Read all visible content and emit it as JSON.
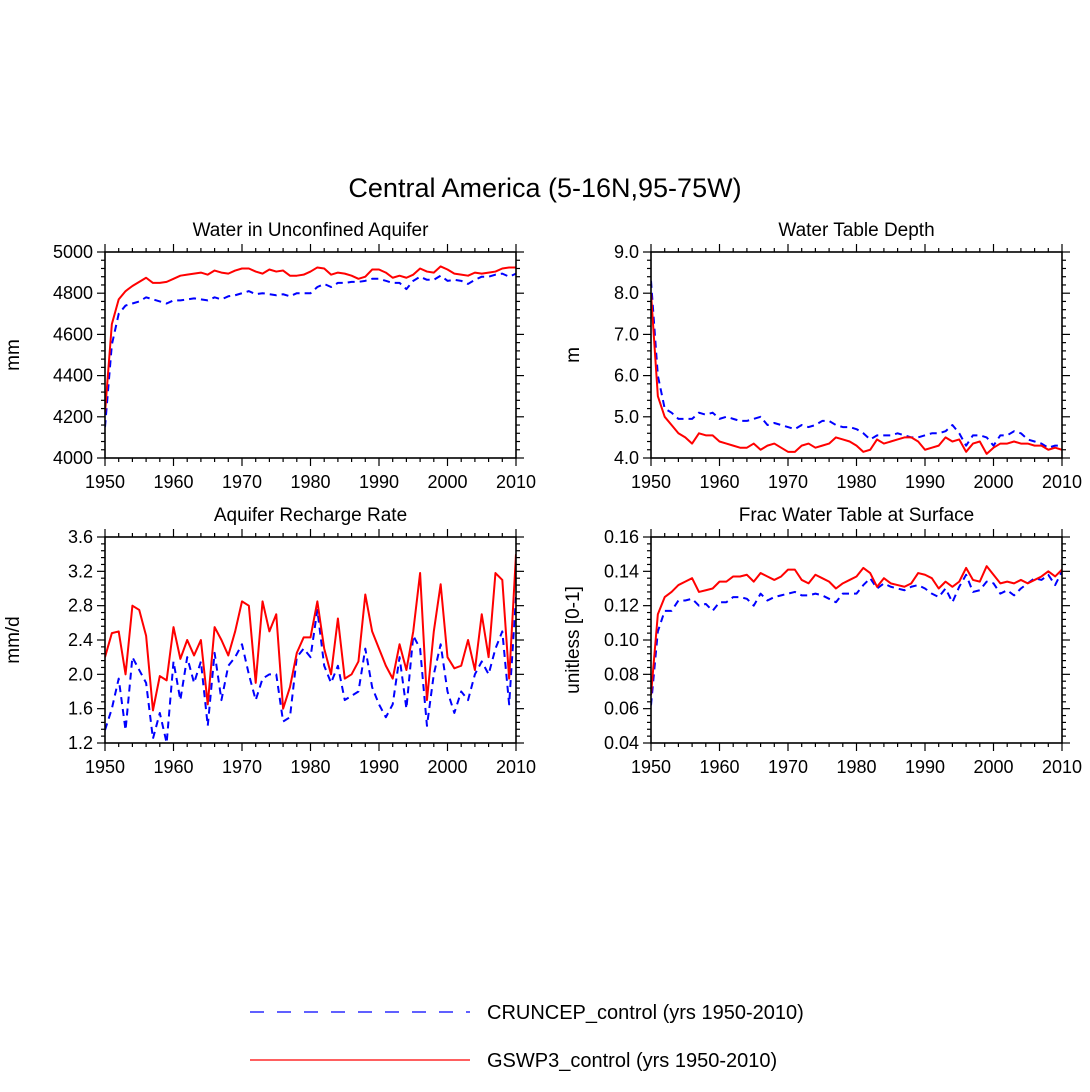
{
  "title": "Central America (5-16N,95-75W)",
  "legend": {
    "entries": [
      {
        "label": "CRUNCEP_control (yrs 1950-2010)",
        "color": "#0000ff",
        "style": "dashed"
      },
      {
        "label": "GSWP3_control (yrs 1950-2010)",
        "color": "#ff0000",
        "style": "solid"
      }
    ]
  },
  "chart_data": [
    {
      "type": "line",
      "title": "Water in Unconfined Aquifer",
      "xlabel": "",
      "ylabel": "mm",
      "xlim": [
        1950,
        2010
      ],
      "ylim": [
        4000,
        5000
      ],
      "xticks": [
        1950,
        1960,
        1970,
        1980,
        1990,
        2000,
        2010
      ],
      "yticks": [
        4000,
        4200,
        4400,
        4600,
        4800,
        5000
      ],
      "ytick_labels": [
        "4000",
        "4200",
        "4400",
        "4600",
        "4800",
        "5000"
      ],
      "x": [
        1950,
        1951,
        1952,
        1953,
        1954,
        1955,
        1956,
        1957,
        1958,
        1959,
        1960,
        1961,
        1962,
        1963,
        1964,
        1965,
        1966,
        1967,
        1968,
        1969,
        1970,
        1971,
        1972,
        1973,
        1974,
        1975,
        1976,
        1977,
        1978,
        1979,
        1980,
        1981,
        1982,
        1983,
        1984,
        1985,
        1986,
        1987,
        1988,
        1989,
        1990,
        1991,
        1992,
        1993,
        1994,
        1995,
        1996,
        1997,
        1998,
        1999,
        2000,
        2001,
        2002,
        2003,
        2004,
        2005,
        2006,
        2007,
        2008,
        2009,
        2010
      ],
      "series": [
        {
          "name": "CRUNCEP_control",
          "color": "#0000ff",
          "style": "dashed",
          "values": [
            4150,
            4550,
            4700,
            4740,
            4750,
            4760,
            4780,
            4770,
            4760,
            4750,
            4765,
            4765,
            4770,
            4775,
            4770,
            4765,
            4780,
            4770,
            4785,
            4790,
            4800,
            4810,
            4795,
            4800,
            4795,
            4790,
            4795,
            4785,
            4800,
            4800,
            4800,
            4830,
            4845,
            4830,
            4850,
            4850,
            4855,
            4855,
            4860,
            4870,
            4870,
            4860,
            4850,
            4850,
            4820,
            4860,
            4880,
            4865,
            4865,
            4885,
            4860,
            4865,
            4860,
            4845,
            4865,
            4880,
            4880,
            4890,
            4895,
            4880,
            4895
          ]
        },
        {
          "name": "GSWP3_control",
          "color": "#ff0000",
          "style": "solid",
          "values": [
            4220,
            4650,
            4770,
            4810,
            4835,
            4855,
            4875,
            4850,
            4850,
            4855,
            4870,
            4885,
            4890,
            4895,
            4900,
            4890,
            4910,
            4900,
            4895,
            4910,
            4920,
            4920,
            4905,
            4895,
            4915,
            4905,
            4910,
            4885,
            4885,
            4890,
            4905,
            4925,
            4920,
            4890,
            4900,
            4895,
            4885,
            4870,
            4880,
            4915,
            4915,
            4900,
            4875,
            4885,
            4875,
            4890,
            4920,
            4905,
            4900,
            4930,
            4915,
            4895,
            4890,
            4885,
            4900,
            4895,
            4900,
            4905,
            4920,
            4925,
            4925
          ]
        }
      ]
    },
    {
      "type": "line",
      "title": "Water Table Depth",
      "xlabel": "",
      "ylabel": "m",
      "xlim": [
        1950,
        2010
      ],
      "ylim": [
        4.0,
        9.0
      ],
      "xticks": [
        1950,
        1960,
        1970,
        1980,
        1990,
        2000,
        2010
      ],
      "yticks": [
        4.0,
        5.0,
        6.0,
        7.0,
        8.0,
        9.0
      ],
      "ytick_labels": [
        "4.0",
        "5.0",
        "6.0",
        "7.0",
        "8.0",
        "9.0"
      ],
      "x": [
        1950,
        1951,
        1952,
        1953,
        1954,
        1955,
        1956,
        1957,
        1958,
        1959,
        1960,
        1961,
        1962,
        1963,
        1964,
        1965,
        1966,
        1967,
        1968,
        1969,
        1970,
        1971,
        1972,
        1973,
        1974,
        1975,
        1976,
        1977,
        1978,
        1979,
        1980,
        1981,
        1982,
        1983,
        1984,
        1985,
        1986,
        1987,
        1988,
        1989,
        1990,
        1991,
        1992,
        1993,
        1994,
        1995,
        1996,
        1997,
        1998,
        1999,
        2000,
        2001,
        2002,
        2003,
        2004,
        2005,
        2006,
        2007,
        2008,
        2009,
        2010
      ],
      "series": [
        {
          "name": "CRUNCEP_control",
          "color": "#0000ff",
          "style": "dashed",
          "values": [
            8.3,
            6.0,
            5.2,
            5.1,
            4.95,
            4.95,
            4.95,
            5.1,
            5.05,
            5.1,
            4.95,
            5.0,
            4.95,
            4.9,
            4.9,
            4.95,
            5.0,
            4.8,
            4.85,
            4.8,
            4.75,
            4.7,
            4.8,
            4.75,
            4.8,
            4.9,
            4.9,
            4.8,
            4.75,
            4.75,
            4.7,
            4.6,
            4.45,
            4.55,
            4.55,
            4.55,
            4.6,
            4.55,
            4.5,
            4.5,
            4.55,
            4.6,
            4.6,
            4.65,
            4.8,
            4.6,
            4.3,
            4.55,
            4.55,
            4.5,
            4.3,
            4.55,
            4.55,
            4.65,
            4.6,
            4.45,
            4.4,
            4.35,
            4.25,
            4.3,
            4.3
          ]
        },
        {
          "name": "GSWP3_control",
          "color": "#ff0000",
          "style": "solid",
          "values": [
            8.0,
            5.5,
            5.0,
            4.8,
            4.6,
            4.5,
            4.35,
            4.6,
            4.55,
            4.55,
            4.4,
            4.35,
            4.3,
            4.25,
            4.25,
            4.35,
            4.2,
            4.3,
            4.35,
            4.25,
            4.15,
            4.15,
            4.3,
            4.35,
            4.25,
            4.3,
            4.35,
            4.5,
            4.45,
            4.4,
            4.3,
            4.15,
            4.2,
            4.45,
            4.35,
            4.4,
            4.45,
            4.5,
            4.5,
            4.4,
            4.2,
            4.25,
            4.3,
            4.5,
            4.4,
            4.45,
            4.15,
            4.35,
            4.4,
            4.1,
            4.25,
            4.35,
            4.35,
            4.4,
            4.35,
            4.35,
            4.3,
            4.3,
            4.2,
            4.25,
            4.2
          ]
        }
      ]
    },
    {
      "type": "line",
      "title": "Aquifer Recharge Rate",
      "xlabel": "",
      "ylabel": "mm/d",
      "xlim": [
        1950,
        2010
      ],
      "ylim": [
        1.2,
        3.6
      ],
      "xticks": [
        1950,
        1960,
        1970,
        1980,
        1990,
        2000,
        2010
      ],
      "yticks": [
        1.2,
        1.6,
        2.0,
        2.4,
        2.8,
        3.2,
        3.6
      ],
      "ytick_labels": [
        "1.2",
        "1.6",
        "2.0",
        "2.4",
        "2.8",
        "3.2",
        "3.6"
      ],
      "x": [
        1950,
        1951,
        1952,
        1953,
        1954,
        1955,
        1956,
        1957,
        1958,
        1959,
        1960,
        1961,
        1962,
        1963,
        1964,
        1965,
        1966,
        1967,
        1968,
        1969,
        1970,
        1971,
        1972,
        1973,
        1974,
        1975,
        1976,
        1977,
        1978,
        1979,
        1980,
        1981,
        1982,
        1983,
        1984,
        1985,
        1986,
        1987,
        1988,
        1989,
        1990,
        1991,
        1992,
        1993,
        1994,
        1995,
        1996,
        1997,
        1998,
        1999,
        2000,
        2001,
        2002,
        2003,
        2004,
        2005,
        2006,
        2007,
        2008,
        2009,
        2010
      ],
      "series": [
        {
          "name": "CRUNCEP_control",
          "color": "#0000ff",
          "style": "dashed",
          "values": [
            1.35,
            1.6,
            1.95,
            1.35,
            2.2,
            2.05,
            1.9,
            1.25,
            1.55,
            1.2,
            2.15,
            1.7,
            2.2,
            1.9,
            2.15,
            1.4,
            2.25,
            1.7,
            2.1,
            2.2,
            2.35,
            2.0,
            1.7,
            1.95,
            2.0,
            2.0,
            1.45,
            1.5,
            2.2,
            2.3,
            2.2,
            2.75,
            2.1,
            1.9,
            2.1,
            1.7,
            1.75,
            1.8,
            2.3,
            1.85,
            1.65,
            1.5,
            1.65,
            2.2,
            1.6,
            2.45,
            2.3,
            1.4,
            2.0,
            2.35,
            1.8,
            1.55,
            1.8,
            1.7,
            2.0,
            2.15,
            2.0,
            2.3,
            2.5,
            1.65,
            2.9
          ]
        },
        {
          "name": "GSWP3_control",
          "color": "#ff0000",
          "style": "solid",
          "values": [
            2.2,
            2.48,
            2.5,
            2.0,
            2.8,
            2.75,
            2.45,
            1.58,
            1.98,
            1.93,
            2.55,
            2.18,
            2.4,
            2.22,
            2.4,
            1.65,
            2.55,
            2.4,
            2.22,
            2.5,
            2.85,
            2.8,
            1.9,
            2.85,
            2.5,
            2.7,
            1.6,
            1.85,
            2.25,
            2.43,
            2.43,
            2.85,
            2.3,
            2.0,
            2.65,
            1.95,
            2.0,
            2.15,
            2.93,
            2.5,
            2.3,
            2.1,
            1.95,
            2.35,
            2.05,
            2.5,
            3.18,
            1.7,
            2.5,
            3.05,
            2.2,
            2.07,
            2.1,
            2.4,
            2.05,
            2.7,
            2.2,
            3.18,
            3.1,
            1.95,
            3.4
          ]
        }
      ]
    },
    {
      "type": "line",
      "title": "Frac Water Table at Surface",
      "xlabel": "",
      "ylabel": "unitless [0-1]",
      "xlim": [
        1950,
        2010
      ],
      "ylim": [
        0.04,
        0.16
      ],
      "xticks": [
        1950,
        1960,
        1970,
        1980,
        1990,
        2000,
        2010
      ],
      "yticks": [
        0.04,
        0.06,
        0.08,
        0.1,
        0.12,
        0.14,
        0.16
      ],
      "ytick_labels": [
        "0.04",
        "0.06",
        "0.08",
        "0.10",
        "0.12",
        "0.14",
        "0.16"
      ],
      "x": [
        1950,
        1951,
        1952,
        1953,
        1954,
        1955,
        1956,
        1957,
        1958,
        1959,
        1960,
        1961,
        1962,
        1963,
        1964,
        1965,
        1966,
        1967,
        1968,
        1969,
        1970,
        1971,
        1972,
        1973,
        1974,
        1975,
        1976,
        1977,
        1978,
        1979,
        1980,
        1981,
        1982,
        1983,
        1984,
        1985,
        1986,
        1987,
        1988,
        1989,
        1990,
        1991,
        1992,
        1993,
        1994,
        1995,
        1996,
        1997,
        1998,
        1999,
        2000,
        2001,
        2002,
        2003,
        2004,
        2005,
        2006,
        2007,
        2008,
        2009,
        2010
      ],
      "series": [
        {
          "name": "CRUNCEP_control",
          "color": "#0000ff",
          "style": "dashed",
          "values": [
            0.062,
            0.105,
            0.117,
            0.117,
            0.123,
            0.123,
            0.124,
            0.12,
            0.121,
            0.117,
            0.122,
            0.122,
            0.125,
            0.125,
            0.124,
            0.12,
            0.127,
            0.123,
            0.125,
            0.126,
            0.127,
            0.128,
            0.126,
            0.126,
            0.127,
            0.126,
            0.124,
            0.122,
            0.127,
            0.127,
            0.127,
            0.132,
            0.136,
            0.13,
            0.133,
            0.131,
            0.13,
            0.129,
            0.131,
            0.132,
            0.13,
            0.127,
            0.125,
            0.13,
            0.122,
            0.131,
            0.138,
            0.128,
            0.129,
            0.134,
            0.133,
            0.127,
            0.129,
            0.126,
            0.13,
            0.133,
            0.136,
            0.135,
            0.138,
            0.132,
            0.14
          ]
        },
        {
          "name": "GSWP3_control",
          "color": "#ff0000",
          "style": "solid",
          "values": [
            0.068,
            0.115,
            0.125,
            0.128,
            0.132,
            0.134,
            0.136,
            0.128,
            0.129,
            0.13,
            0.134,
            0.134,
            0.137,
            0.137,
            0.138,
            0.134,
            0.139,
            0.137,
            0.135,
            0.137,
            0.141,
            0.141,
            0.135,
            0.133,
            0.138,
            0.136,
            0.134,
            0.13,
            0.133,
            0.135,
            0.137,
            0.142,
            0.139,
            0.131,
            0.136,
            0.133,
            0.132,
            0.131,
            0.133,
            0.139,
            0.138,
            0.136,
            0.13,
            0.134,
            0.131,
            0.134,
            0.142,
            0.135,
            0.134,
            0.143,
            0.138,
            0.133,
            0.134,
            0.133,
            0.135,
            0.133,
            0.135,
            0.137,
            0.14,
            0.137,
            0.141
          ]
        }
      ]
    }
  ]
}
